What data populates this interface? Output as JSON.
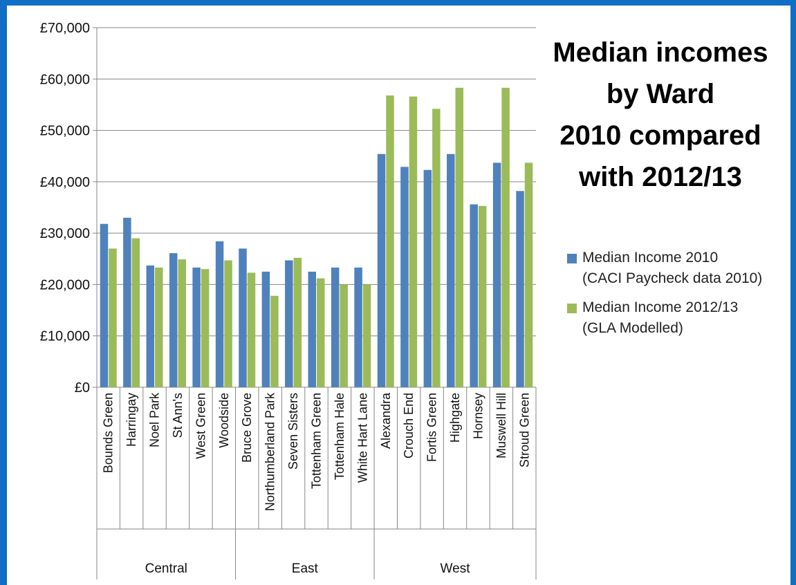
{
  "chart_data": {
    "type": "bar",
    "title_lines": [
      "Median incomes",
      "by Ward",
      "2010 compared",
      "with 2012/13"
    ],
    "xlabel": "",
    "ylabel": "",
    "ylim": [
      0,
      70000
    ],
    "y_ticks": [
      0,
      10000,
      20000,
      30000,
      40000,
      50000,
      60000,
      70000
    ],
    "y_tick_labels": [
      "£0",
      "£10,000",
      "£20,000",
      "£30,000",
      "£40,000",
      "£50,000",
      "£60,000",
      "£70,000"
    ],
    "grid": true,
    "legend_position": "right",
    "categories": [
      "Bounds Green",
      "Harringay",
      "Noel Park",
      "St Ann's",
      "West Green",
      "Woodside",
      "Bruce Grove",
      "Northumberland Park",
      "Seven Sisters",
      "Tottenham Green",
      "Tottenham Hale",
      "White Hart Lane",
      "Alexandra",
      "Crouch End",
      "Fortis Green",
      "Highgate",
      "Hornsey",
      "Muswell Hill",
      "Stroud Green"
    ],
    "groups": [
      {
        "label": "Central",
        "count": 6
      },
      {
        "label": "East",
        "count": 6
      },
      {
        "label": "West",
        "count": 7
      }
    ],
    "series": [
      {
        "name_lines": [
          "Median Income 2010",
          "(CACI Paycheck data 2010)"
        ],
        "color": "#4f81bd",
        "values": [
          31800,
          33000,
          23700,
          26100,
          23300,
          28400,
          27000,
          22500,
          24700,
          22500,
          23300,
          23300,
          45400,
          42900,
          42300,
          45400,
          35600,
          43700,
          38200
        ]
      },
      {
        "name_lines": [
          "Median Income 2012/13",
          "(GLA Modelled)"
        ],
        "color": "#9bbb59",
        "values": [
          27000,
          29000,
          23300,
          24900,
          23000,
          24700,
          22300,
          17800,
          25200,
          21200,
          20000,
          20000,
          56800,
          56600,
          54200,
          58300,
          35300,
          58300,
          43700
        ]
      }
    ]
  }
}
